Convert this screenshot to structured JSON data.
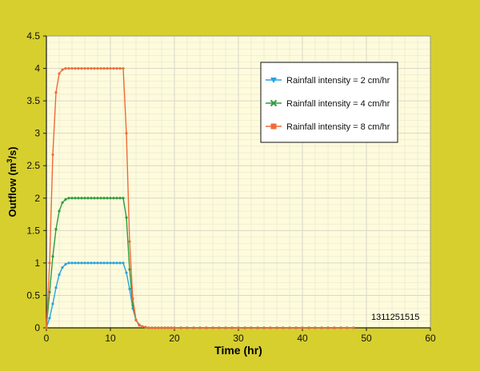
{
  "colors": {
    "background": "#d6cf2e",
    "plot_area": "#fdfbdc",
    "grid": "#d8d8c8",
    "axis": "#1a1a1a"
  },
  "chart_data": {
    "type": "line",
    "xlabel": "Time (hr)",
    "ylabel_parts": [
      "Outflow (m",
      "3",
      "/s)"
    ],
    "xlim": [
      0,
      60
    ],
    "ylim": [
      0,
      4.5
    ],
    "x_ticks": [
      0,
      10,
      20,
      30,
      40,
      50,
      60
    ],
    "y_ticks": [
      0,
      0.5,
      1,
      1.5,
      2,
      2.5,
      3,
      3.5,
      4,
      4.5
    ],
    "grid": true,
    "legend_position": "top-right",
    "annotation": "1311251515",
    "series": [
      {
        "name": "Rainfall intensity = 2 cm/hr",
        "color": "#29a3e0",
        "marker": "triangle-down",
        "x": [
          0,
          0.5,
          1,
          1.5,
          2,
          2.5,
          3,
          3.5,
          4,
          4.5,
          5,
          5.5,
          6,
          6.5,
          7,
          7.5,
          8,
          8.5,
          9,
          9.5,
          10,
          10.5,
          11,
          11.5,
          12,
          12.5,
          13,
          13.5,
          14,
          14.5,
          15,
          15.5,
          16,
          16.5,
          17,
          17.5,
          18,
          18.5,
          19,
          19.5,
          20,
          21,
          22,
          23,
          24,
          25,
          26,
          27,
          28,
          29,
          30,
          31,
          32,
          33,
          34,
          35,
          36,
          37,
          38,
          39,
          40,
          41,
          42,
          43,
          44,
          45,
          46,
          47,
          48
        ],
        "y": [
          0,
          0.15,
          0.37,
          0.62,
          0.82,
          0.93,
          0.98,
          1.0,
          1.0,
          1.0,
          1.0,
          1.0,
          1.0,
          1.0,
          1.0,
          1.0,
          1.0,
          1.0,
          1.0,
          1.0,
          1.0,
          1.0,
          1.0,
          1.0,
          1.0,
          0.85,
          0.6,
          0.3,
          0.12,
          0.05,
          0.02,
          0.01,
          0,
          0,
          0,
          0,
          0,
          0,
          0,
          0,
          0,
          0,
          0,
          0,
          0,
          0,
          0,
          0,
          0,
          0,
          0,
          0,
          0,
          0,
          0,
          0,
          0,
          0,
          0,
          0,
          0,
          0,
          0,
          0,
          0,
          0,
          0,
          0,
          0
        ]
      },
      {
        "name": "Rainfall intensity = 4 cm/hr",
        "color": "#2e9c3a",
        "marker": "x",
        "x": [
          0,
          0.5,
          1,
          1.5,
          2,
          2.5,
          3,
          3.5,
          4,
          4.5,
          5,
          5.5,
          6,
          6.5,
          7,
          7.5,
          8,
          8.5,
          9,
          9.5,
          10,
          10.5,
          11,
          11.5,
          12,
          12.5,
          13,
          13.5,
          14,
          14.5,
          15,
          15.5,
          16,
          16.5,
          17,
          17.5,
          18,
          18.5,
          19,
          19.5,
          20,
          21,
          22,
          23,
          24,
          25,
          26,
          27,
          28,
          29,
          30,
          31,
          32,
          33,
          34,
          35,
          36,
          37,
          38,
          39,
          40,
          41,
          42,
          43,
          44,
          45,
          46,
          47,
          48
        ],
        "y": [
          0,
          0.55,
          1.1,
          1.52,
          1.8,
          1.93,
          1.98,
          2.0,
          2.0,
          2.0,
          2.0,
          2.0,
          2.0,
          2.0,
          2.0,
          2.0,
          2.0,
          2.0,
          2.0,
          2.0,
          2.0,
          2.0,
          2.0,
          2.0,
          2.0,
          1.7,
          0.9,
          0.35,
          0.12,
          0.04,
          0.02,
          0.01,
          0,
          0,
          0,
          0,
          0,
          0,
          0,
          0,
          0,
          0,
          0,
          0,
          0,
          0,
          0,
          0,
          0,
          0,
          0,
          0,
          0,
          0,
          0,
          0,
          0,
          0,
          0,
          0,
          0,
          0,
          0,
          0,
          0,
          0,
          0,
          0,
          0
        ]
      },
      {
        "name": "Rainfall intensity = 8 cm/hr",
        "color": "#ef6a3a",
        "marker": "square",
        "x": [
          0,
          0.5,
          1,
          1.5,
          2,
          2.5,
          3,
          3.5,
          4,
          4.5,
          5,
          5.5,
          6,
          6.5,
          7,
          7.5,
          8,
          8.5,
          9,
          9.5,
          10,
          10.5,
          11,
          11.5,
          12,
          12.5,
          13,
          13.5,
          14,
          14.5,
          15,
          15.5,
          16,
          16.5,
          17,
          17.5,
          18,
          18.5,
          19,
          19.5,
          20,
          21,
          22,
          23,
          24,
          25,
          26,
          27,
          28,
          29,
          30,
          31,
          32,
          33,
          34,
          35,
          36,
          37,
          38,
          39,
          40,
          41,
          42,
          43,
          44,
          45,
          46,
          47,
          48
        ],
        "y": [
          0,
          1.0,
          2.67,
          3.63,
          3.92,
          3.98,
          4.0,
          4.0,
          4.0,
          4.0,
          4.0,
          4.0,
          4.0,
          4.0,
          4.0,
          4.0,
          4.0,
          4.0,
          4.0,
          4.0,
          4.0,
          4.0,
          4.0,
          4.0,
          4.0,
          3.0,
          1.33,
          0.45,
          0.12,
          0.04,
          0.02,
          0.01,
          0,
          0,
          0,
          0,
          0,
          0,
          0,
          0,
          0,
          0,
          0,
          0,
          0,
          0,
          0,
          0,
          0,
          0,
          0,
          0,
          0,
          0,
          0,
          0,
          0,
          0,
          0,
          0,
          0,
          0,
          0,
          0,
          0,
          0,
          0,
          0,
          0
        ]
      }
    ]
  }
}
